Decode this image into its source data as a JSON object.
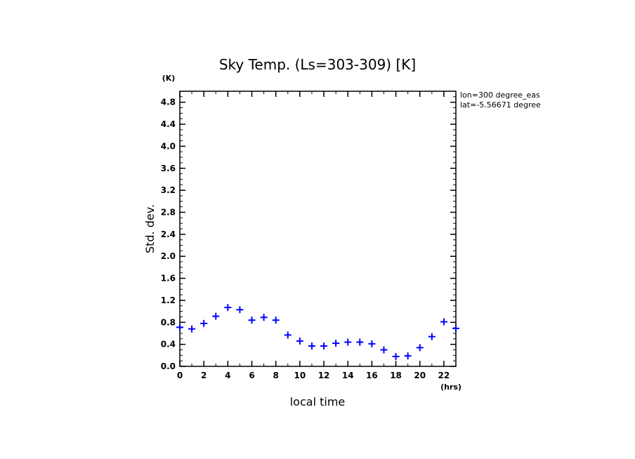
{
  "chart_data": {
    "type": "scatter",
    "title": "Sky Temp. (Ls=303-309) [K]",
    "xlabel": "local time",
    "ylabel": "Std. dev.",
    "x_unit": "(hrs)",
    "y_unit": "(K)",
    "xlim": [
      0,
      23
    ],
    "ylim": [
      0,
      5.0
    ],
    "x_ticks": [
      "0",
      "2",
      "4",
      "6",
      "8",
      "10",
      "12",
      "14",
      "16",
      "18",
      "20",
      "22"
    ],
    "y_ticks": [
      "0.0",
      "0.4",
      "0.8",
      "1.2",
      "1.6",
      "2.0",
      "2.4",
      "2.8",
      "3.2",
      "3.6",
      "4.0",
      "4.4",
      "4.8"
    ],
    "marker": "+",
    "color": "#0000ff",
    "grid": false,
    "annotations": [
      "lon=300 degree_eas",
      "lat=-5.56671 degree"
    ],
    "x": [
      0,
      1,
      2,
      3,
      4,
      5,
      6,
      7,
      8,
      9,
      10,
      11,
      12,
      13,
      14,
      15,
      16,
      17,
      18,
      19,
      20,
      21,
      22,
      23
    ],
    "y": [
      0.71,
      0.68,
      0.78,
      0.91,
      1.07,
      1.03,
      0.84,
      0.89,
      0.84,
      0.57,
      0.46,
      0.37,
      0.37,
      0.42,
      0.44,
      0.44,
      0.41,
      0.3,
      0.18,
      0.19,
      0.34,
      0.54,
      0.81,
      0.69
    ]
  }
}
